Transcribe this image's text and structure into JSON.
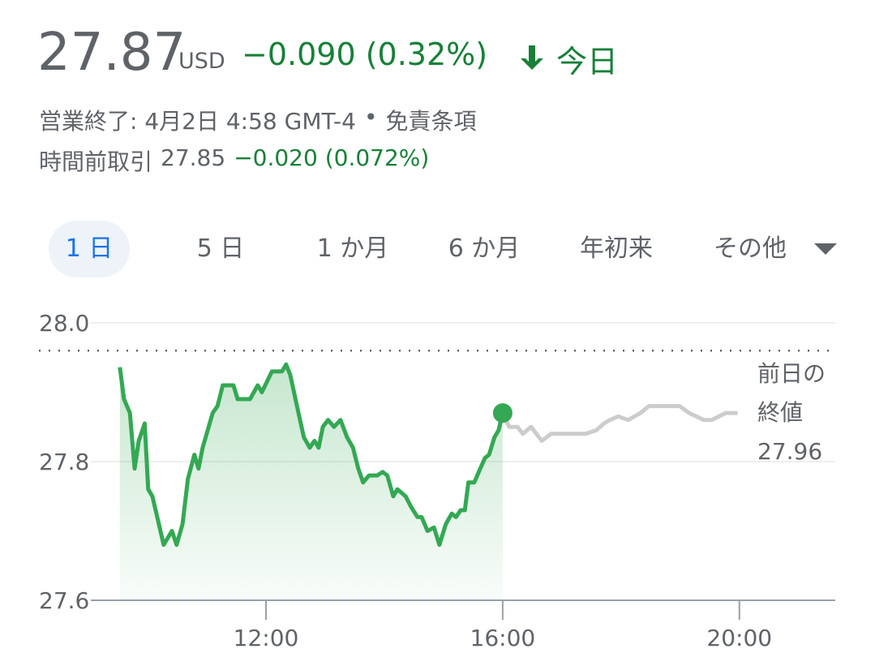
{
  "header": {
    "price": "27.87",
    "currency": "USD",
    "change": "−0.090 (0.32%)",
    "period": "今日",
    "status": "営業終了: 4月2日 4:58 GMT-4",
    "separator": "•",
    "disclaimer": "免責条項",
    "premarket_label": "時間前取引",
    "premarket_price": "27.85",
    "premarket_change": "−0.020 (0.072%)"
  },
  "tabs": {
    "items": [
      "1 日",
      "5 日",
      "1 か月",
      "6 か月",
      "年初来",
      "その他"
    ],
    "active": 0
  },
  "chart_data": {
    "type": "line",
    "xlim": [
      9.04,
      21.62
    ],
    "xticks": [
      {
        "value": 12,
        "label": "12:00"
      },
      {
        "value": 16,
        "label": "16:00"
      },
      {
        "value": 20,
        "label": "20:00"
      }
    ],
    "ylim": [
      27.6,
      28.0
    ],
    "yticks": [
      {
        "value": 28,
        "label": "28.0"
      },
      27.8,
      27.6
    ],
    "grid": true,
    "previous_close": {
      "label_lines": [
        "前日の",
        "終値"
      ],
      "value": 27.96
    },
    "series": [
      {
        "color": "#34a853",
        "fill": true,
        "x": [
          9.53,
          9.6,
          9.7,
          9.78,
          9.85,
          9.95,
          10.01,
          10.08,
          10.19,
          10.27,
          10.41,
          10.49,
          10.59,
          10.68,
          10.79,
          10.86,
          10.93,
          11.1,
          11.18,
          11.27,
          11.45,
          11.52,
          11.73,
          11.86,
          11.93,
          12.1,
          12.27,
          12.34,
          12.41,
          12.55,
          12.64,
          12.74,
          12.82,
          12.89,
          12.96,
          13.05,
          13.15,
          13.26,
          13.37,
          13.47,
          13.56,
          13.64,
          13.74,
          13.88,
          13.97,
          14.05,
          14.15,
          14.22,
          14.36,
          14.45,
          14.56,
          14.63,
          14.73,
          14.84,
          14.93,
          15.04,
          15.14,
          15.21,
          15.29,
          15.36,
          15.42,
          15.52,
          15.62,
          15.7,
          15.77,
          15.86,
          15.93,
          16.0
        ],
        "values": [
          27.936,
          27.89,
          27.87,
          27.79,
          27.83,
          27.855,
          27.76,
          27.75,
          27.71,
          27.68,
          27.7,
          27.68,
          27.71,
          27.775,
          27.81,
          27.79,
          27.82,
          27.87,
          27.88,
          27.91,
          27.91,
          27.89,
          27.89,
          27.91,
          27.9,
          27.93,
          27.93,
          27.94,
          27.925,
          27.87,
          27.835,
          27.82,
          27.83,
          27.82,
          27.85,
          27.86,
          27.85,
          27.86,
          27.835,
          27.82,
          27.79,
          27.77,
          27.78,
          27.78,
          27.785,
          27.78,
          27.75,
          27.76,
          27.75,
          27.735,
          27.72,
          27.72,
          27.7,
          27.705,
          27.68,
          27.71,
          27.725,
          27.72,
          27.73,
          27.73,
          27.77,
          27.77,
          27.79,
          27.805,
          27.81,
          27.835,
          27.845,
          27.87
        ]
      },
      {
        "color": "#cccccc",
        "fill": false,
        "x": [
          16.0,
          16.11,
          16.25,
          16.34,
          16.48,
          16.66,
          16.82,
          17.1,
          17.4,
          17.58,
          17.71,
          17.81,
          17.95,
          18.12,
          18.33,
          18.47,
          18.99,
          19.15,
          19.4,
          19.53,
          19.77,
          19.97
        ],
        "values": [
          27.87,
          27.85,
          27.85,
          27.84,
          27.85,
          27.83,
          27.84,
          27.84,
          27.84,
          27.845,
          27.855,
          27.86,
          27.865,
          27.86,
          27.87,
          27.88,
          27.88,
          27.87,
          27.86,
          27.86,
          27.87,
          27.87
        ]
      }
    ]
  }
}
